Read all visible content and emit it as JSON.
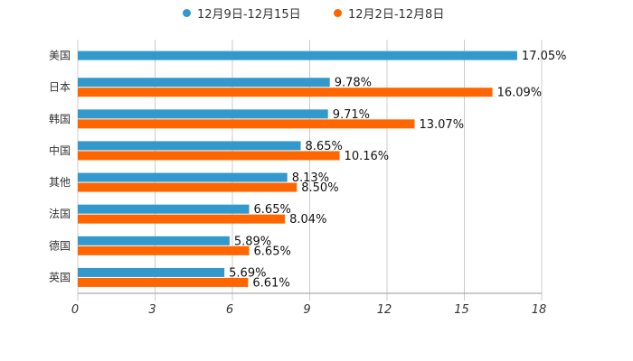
{
  "chart_data": {
    "type": "bar",
    "orientation": "horizontal",
    "categories": [
      "美国",
      "日本",
      "韩国",
      "中国",
      "其他",
      "法国",
      "德国",
      "英国"
    ],
    "series": [
      {
        "name": "12月9日-12月15日",
        "color": "#3399cc",
        "values": [
          17.05,
          9.78,
          9.71,
          8.65,
          8.13,
          6.65,
          5.89,
          5.69
        ],
        "labels": [
          "17.05%",
          "9.78%",
          "9.71%",
          "8.65%",
          "8.13%",
          "6.65%",
          "5.89%",
          "5.69%"
        ]
      },
      {
        "name": "12月2日-12月8日",
        "color": "#ff6600",
        "values": [
          null,
          16.09,
          13.07,
          10.16,
          8.5,
          8.04,
          6.65,
          6.61
        ],
        "labels": [
          "",
          "16.09%",
          "13.07%",
          "10.16%",
          "8.50%",
          "8.04%",
          "6.65%",
          "6.61%"
        ]
      }
    ],
    "xlim": [
      0,
      18
    ],
    "xticks": [
      "0",
      "3",
      "6",
      "9",
      "12",
      "15",
      "18"
    ],
    "grid": true,
    "legend_position": "top"
  }
}
